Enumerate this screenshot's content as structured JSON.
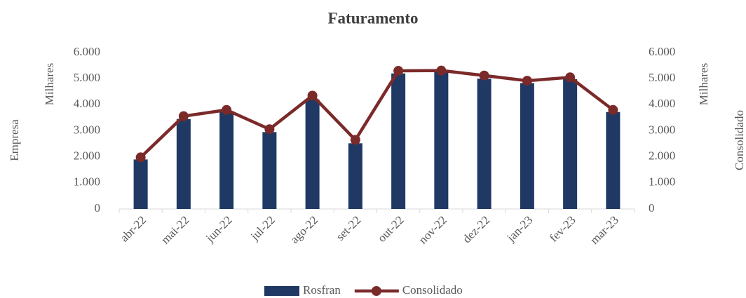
{
  "chart_data": {
    "type": "bar-line",
    "title": "Faturamento",
    "y_label_outer": "Empresa",
    "y_label": "Milhares",
    "y2_label": "Milhares",
    "y2_label_outer": "Consolidado",
    "categories": [
      "abr-22",
      "mai-22",
      "jun-22",
      "jul-22",
      "ago-22",
      "set-22",
      "out-22",
      "nov-22",
      "dez-22",
      "jan-23",
      "fev-23",
      "mar-23"
    ],
    "series": [
      {
        "name": "Rosfran",
        "type": "bar",
        "color": "#1f3864",
        "values": [
          1900,
          3450,
          3750,
          2950,
          4200,
          2520,
          5200,
          5280,
          5000,
          4830,
          4980,
          3720
        ]
      },
      {
        "name": "Consolidado",
        "type": "line",
        "axis": "y2",
        "color": "#7b2a2a",
        "values": [
          1980,
          3560,
          3800,
          3060,
          4350,
          2650,
          5300,
          5310,
          5120,
          4920,
          5050,
          3800
        ]
      }
    ],
    "ylim": [
      0,
      6000
    ],
    "yticks": [
      0,
      {
        "value": 1000,
        "label": "1.000"
      },
      {
        "value": 2000,
        "label": "2.000"
      },
      {
        "value": 3000,
        "label": "3.000"
      },
      {
        "value": 4000,
        "label": "4.000"
      },
      {
        "value": 5000,
        "label": "5.000"
      },
      {
        "value": 6000,
        "label": "6.000"
      }
    ],
    "y2lim": [
      0,
      6000
    ],
    "y2ticks": [
      0,
      {
        "value": 1000,
        "label": "1.000"
      },
      {
        "value": 2000,
        "label": "2.000"
      },
      {
        "value": 3000,
        "label": "3.000"
      },
      {
        "value": 4000,
        "label": "4.000"
      },
      {
        "value": 5000,
        "label": "5.000"
      },
      {
        "value": 6000,
        "label": "6.000"
      }
    ],
    "legend": "bottom"
  }
}
